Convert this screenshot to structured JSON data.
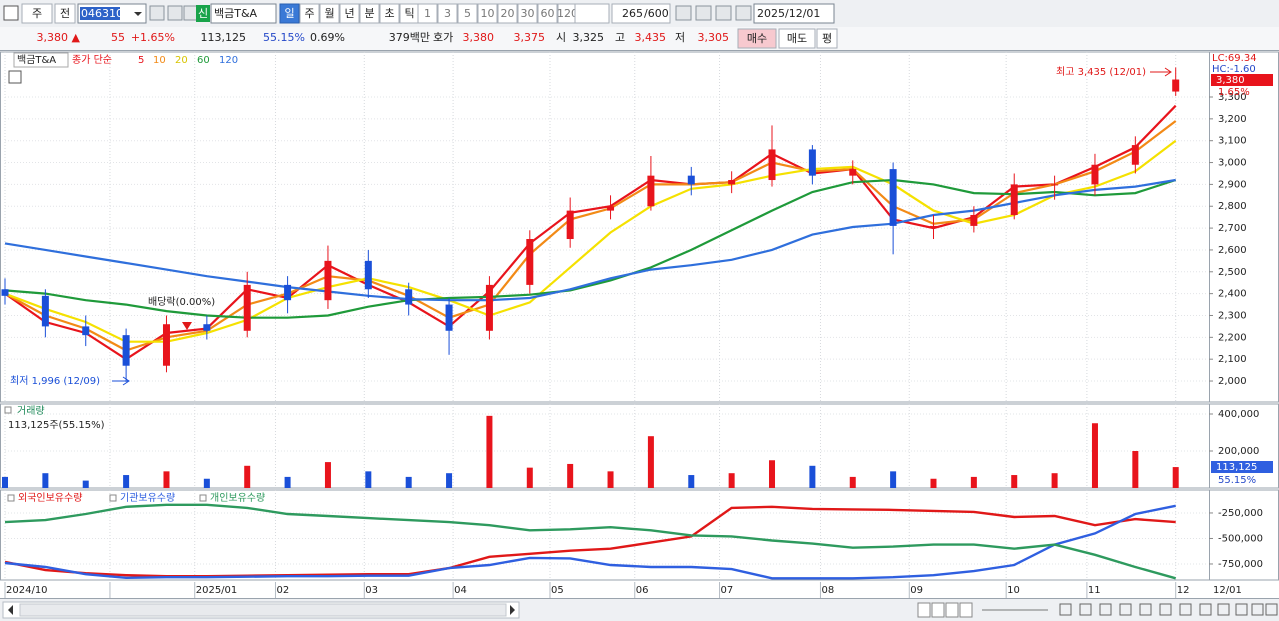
{
  "toolbar": {
    "market": "주",
    "prev": "전",
    "code": "046310",
    "badge": "신",
    "name": "백금T&A",
    "periods": [
      "일",
      "주",
      "월",
      "년",
      "분",
      "초",
      "틱"
    ],
    "intervals": [
      "1",
      "3",
      "5",
      "10",
      "20",
      "30",
      "60",
      "120"
    ],
    "count": "265",
    "max": "/600",
    "date": "2025/12/01"
  },
  "quote": [
    "3,380 ▲",
    "55",
    "+1.65%",
    "113,125",
    "55.15%",
    "0.69%",
    "379백만",
    "호가",
    "3,380",
    "3,375",
    "시",
    "3,325",
    "고",
    "3,435",
    "저",
    "3,305"
  ],
  "buttons": [
    "매수",
    "매도",
    "평"
  ],
  "chart_data": [
    {
      "type": "candlestick",
      "title": "백금T&A",
      "legend_title": "종가 단순",
      "x": [
        0,
        10,
        20,
        30,
        40,
        50,
        60,
        70,
        80,
        90,
        100,
        110,
        120,
        130,
        140,
        150,
        160,
        170,
        180,
        190,
        200,
        210,
        220,
        230,
        240,
        250,
        260,
        270,
        280,
        290
      ],
      "xlim": [
        0,
        298
      ],
      "open": [
        2420,
        2390,
        2250,
        2210,
        2070,
        2260,
        2230,
        2440,
        2370,
        2550,
        2420,
        2350,
        2230,
        2440,
        2650,
        2780,
        2800,
        2940,
        2900,
        2920,
        3060,
        2940,
        2970,
        2710,
        2710,
        2760,
        2900,
        2900,
        2990,
        3325
      ],
      "high": [
        2470,
        2420,
        2300,
        2240,
        2300,
        2300,
        2500,
        2480,
        2620,
        2600,
        2450,
        2380,
        2480,
        2690,
        2840,
        2850,
        3030,
        2980,
        2960,
        3170,
        3080,
        3010,
        3000,
        2760,
        2800,
        2950,
        2940,
        3040,
        3120,
        3435
      ],
      "low": [
        2350,
        2200,
        2160,
        1996,
        2040,
        2190,
        2200,
        2310,
        2330,
        2380,
        2300,
        2120,
        2190,
        2400,
        2610,
        2740,
        2780,
        2850,
        2860,
        2890,
        2900,
        2900,
        2580,
        2650,
        2680,
        2740,
        2830,
        2850,
        2950,
        3305
      ],
      "close": [
        2390,
        2250,
        2210,
        2070,
        2260,
        2230,
        2440,
        2370,
        2550,
        2420,
        2350,
        2230,
        2440,
        2650,
        2780,
        2800,
        2940,
        2900,
        2920,
        3060,
        2940,
        2970,
        2710,
        2710,
        2760,
        2900,
        2900,
        2990,
        3080,
        3380
      ],
      "up_color": "#e8141c",
      "down_color": "#1a4fd8",
      "series": [
        {
          "name": "5",
          "color": "#e8141c",
          "values": [
            2400,
            2270,
            2220,
            2100,
            2220,
            2240,
            2420,
            2380,
            2530,
            2440,
            2360,
            2250,
            2410,
            2630,
            2770,
            2800,
            2920,
            2900,
            2910,
            3040,
            2950,
            2970,
            2740,
            2700,
            2750,
            2890,
            2900,
            2980,
            3070,
            3260
          ]
        },
        {
          "name": "10",
          "color": "#f28a16",
          "values": [
            2400,
            2300,
            2240,
            2140,
            2200,
            2230,
            2350,
            2400,
            2480,
            2460,
            2390,
            2290,
            2350,
            2580,
            2740,
            2790,
            2900,
            2900,
            2910,
            3000,
            2960,
            2970,
            2800,
            2720,
            2740,
            2860,
            2900,
            2960,
            3050,
            3190
          ]
        },
        {
          "name": "20",
          "color": "#f5e100",
          "values": [
            2400,
            2330,
            2270,
            2180,
            2180,
            2220,
            2280,
            2380,
            2430,
            2470,
            2430,
            2370,
            2300,
            2360,
            2520,
            2680,
            2800,
            2880,
            2900,
            2940,
            2970,
            2980,
            2900,
            2780,
            2720,
            2760,
            2850,
            2890,
            2960,
            3100
          ]
        },
        {
          "name": "60",
          "color": "#1f9a3a",
          "values": [
            2415,
            2400,
            2370,
            2350,
            2320,
            2300,
            2290,
            2290,
            2300,
            2340,
            2370,
            2380,
            2385,
            2395,
            2415,
            2460,
            2520,
            2600,
            2690,
            2780,
            2865,
            2910,
            2920,
            2900,
            2860,
            2855,
            2865,
            2850,
            2860,
            2920
          ]
        },
        {
          "name": "120",
          "color": "#2f6fdc",
          "values": [
            2630,
            2600,
            2570,
            2540,
            2510,
            2480,
            2455,
            2430,
            2410,
            2390,
            2375,
            2370,
            2370,
            2380,
            2420,
            2470,
            2510,
            2530,
            2555,
            2600,
            2670,
            2705,
            2720,
            2760,
            2780,
            2815,
            2850,
            2875,
            2890,
            2920
          ]
        }
      ],
      "ylim": [
        1904,
        3506
      ],
      "yticks": [
        {
          "value": 2000,
          "label": "2,000"
        },
        {
          "value": 2100,
          "label": "2,100"
        },
        {
          "value": 2200,
          "label": "2,200"
        },
        {
          "value": 2300,
          "label": "2,300"
        },
        {
          "value": 2400,
          "label": "2,400"
        },
        {
          "value": 2500,
          "label": "2,500"
        },
        {
          "value": 2600,
          "label": "2,600"
        },
        {
          "value": 2700,
          "label": "2,700"
        },
        {
          "value": 2800,
          "label": "2,800"
        },
        {
          "value": 2900,
          "label": "2,900"
        },
        {
          "value": 3000,
          "label": "3,000"
        },
        {
          "value": 3100,
          "label": "3,100"
        },
        {
          "value": 3200,
          "label": "3,200"
        },
        {
          "value": 3300,
          "label": "3,300"
        }
      ],
      "annotations": [
        "최고 3,435 (12/01)",
        "최저 1,996 (12/09)",
        "배당락(0.00%)"
      ],
      "lc_label": "LC:69.34",
      "hc_label": "HC:-1.60",
      "last_label": "3,380",
      "change_label": "1.65%"
    },
    {
      "type": "bar",
      "title": "거래량",
      "subtitle": "113,125주(55.15%)",
      "x": [
        0,
        10,
        20,
        30,
        40,
        50,
        60,
        70,
        80,
        90,
        100,
        110,
        120,
        130,
        140,
        150,
        160,
        170,
        180,
        190,
        200,
        210,
        220,
        230,
        240,
        250,
        260,
        270,
        280,
        290
      ],
      "xlim": [
        0,
        298
      ],
      "values": [
        60000,
        80000,
        40000,
        70000,
        90000,
        50000,
        120000,
        60000,
        140000,
        90000,
        60000,
        80000,
        390000,
        110000,
        130000,
        90000,
        280000,
        70000,
        80000,
        150000,
        120000,
        60000,
        90000,
        50000,
        60000,
        70000,
        80000,
        350000,
        200000,
        113125
      ],
      "ylim": [
        0,
        454000
      ],
      "yticks": [
        {
          "value": 200000,
          "label": "200,000"
        },
        {
          "value": 400000,
          "label": "400,000"
        }
      ],
      "last_label": "113,125",
      "ratio_label": "55.15%"
    },
    {
      "type": "line",
      "x": [
        0,
        10,
        20,
        30,
        40,
        50,
        60,
        70,
        80,
        90,
        100,
        110,
        120,
        130,
        140,
        150,
        160,
        170,
        180,
        190,
        200,
        210,
        220,
        230,
        240,
        250,
        260,
        270,
        280,
        290
      ],
      "xlim": [
        0,
        298
      ],
      "series": [
        {
          "name": "외국인보유수량",
          "color": "#e01818",
          "values": [
            -730000,
            -810000,
            -840000,
            -860000,
            -870000,
            -870000,
            -865000,
            -860000,
            -855000,
            -850000,
            -850000,
            -790000,
            -680000,
            -650000,
            -620000,
            -600000,
            -540000,
            -480000,
            -200000,
            -190000,
            -210000,
            -215000,
            -220000,
            -230000,
            -240000,
            -290000,
            -280000,
            -370000,
            -310000,
            -340000
          ]
        },
        {
          "name": "기관보유수량",
          "color": "#2f5fe0",
          "values": [
            -740000,
            -780000,
            -850000,
            -885000,
            -880000,
            -880000,
            -875000,
            -870000,
            -870000,
            -865000,
            -865000,
            -790000,
            -760000,
            -690000,
            -695000,
            -760000,
            -780000,
            -780000,
            -800000,
            -890000,
            -890000,
            -890000,
            -880000,
            -860000,
            -820000,
            -760000,
            -560000,
            -450000,
            -260000,
            -180000
          ]
        },
        {
          "name": "개인보유수량",
          "color": "#2e9a5e",
          "values": [
            -340000,
            -320000,
            -260000,
            -190000,
            -170000,
            -170000,
            -200000,
            -260000,
            -280000,
            -300000,
            -320000,
            -340000,
            -370000,
            -420000,
            -410000,
            -390000,
            -420000,
            -470000,
            -480000,
            -520000,
            -550000,
            -590000,
            -580000,
            -560000,
            -560000,
            -600000,
            -560000,
            -660000,
            -780000,
            -890000
          ]
        }
      ],
      "ylim": [
        -907000,
        -25000
      ],
      "yticks": [
        {
          "value": -250000,
          "label": "-250,000"
        },
        {
          "value": -500000,
          "label": "-500,000"
        },
        {
          "value": -750000,
          "label": "-750,000"
        }
      ],
      "xticks": [
        {
          "value": 0,
          "label": "2024/10"
        },
        26,
        {
          "value": 47,
          "label": "2025/01"
        },
        {
          "value": 67,
          "label": "02"
        },
        {
          "value": 89,
          "label": "03"
        },
        {
          "value": 111,
          "label": "04"
        },
        {
          "value": 135,
          "label": "05"
        },
        {
          "value": 156,
          "label": "06"
        },
        {
          "value": 177,
          "label": "07"
        },
        {
          "value": 202,
          "label": "08"
        },
        {
          "value": 224,
          "label": "09"
        },
        {
          "value": 248,
          "label": "10"
        },
        {
          "value": 268,
          "label": "11"
        },
        {
          "value": 290,
          "label": "12"
        }
      ],
      "end_label": "12/01"
    }
  ]
}
